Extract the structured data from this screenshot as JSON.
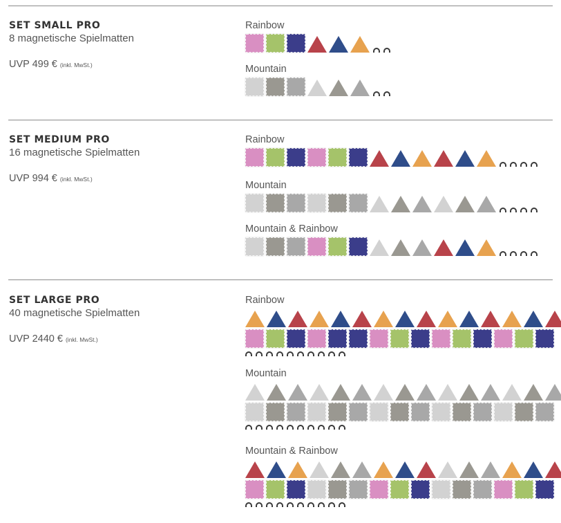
{
  "colors": {
    "pink": "#d98fc2",
    "green": "#a5c36a",
    "navy": "#3b3d8a",
    "red": "#b8434a",
    "blue": "#2f4d8a",
    "orange": "#e7a24f",
    "lightgrey": "#d2d2d2",
    "darkgrey": "#9a9891",
    "midgrey": "#a8a8a8",
    "arch": "#3a3a3a"
  },
  "sets": [
    {
      "title": "SET SMALL PRO",
      "count": "8 magnetische Spielmatten",
      "price": "UVP 499 €",
      "price_note": "(inkl. MwSt.)",
      "variants": [
        {
          "name": "Rainbow",
          "layout": "row",
          "tiles": [
            "pink",
            "green",
            "navy"
          ],
          "triangles": [
            "red",
            "blue",
            "orange"
          ],
          "arches": 2
        },
        {
          "name": "Mountain",
          "layout": "row",
          "tiles": [
            "lightgrey",
            "darkgrey",
            "midgrey"
          ],
          "triangles": [
            "lightgrey",
            "darkgrey",
            "midgrey"
          ],
          "arches": 2
        }
      ]
    },
    {
      "title": "SET MEDIUM PRO",
      "count": "16 magnetische Spielmatten",
      "price": "UVP 994 €",
      "price_note": "(inkl. MwSt.)",
      "variants": [
        {
          "name": "Rainbow",
          "layout": "row",
          "tiles": [
            "pink",
            "green",
            "navy",
            "pink",
            "green",
            "navy"
          ],
          "triangles": [
            "red",
            "blue",
            "orange",
            "red",
            "blue",
            "orange"
          ],
          "arches": 4
        },
        {
          "name": "Mountain",
          "layout": "row",
          "tiles": [
            "lightgrey",
            "darkgrey",
            "midgrey",
            "lightgrey",
            "darkgrey",
            "midgrey"
          ],
          "triangles": [
            "lightgrey",
            "darkgrey",
            "midgrey",
            "lightgrey",
            "darkgrey",
            "midgrey"
          ],
          "arches": 4
        },
        {
          "name": "Mountain & Rainbow",
          "layout": "row",
          "tiles": [
            "lightgrey",
            "darkgrey",
            "midgrey",
            "pink",
            "green",
            "navy"
          ],
          "triangles": [
            "lightgrey",
            "darkgrey",
            "midgrey",
            "red",
            "blue",
            "orange"
          ],
          "arches": 4
        }
      ]
    },
    {
      "title": "SET LARGE PRO",
      "count": "40 magnetische Spielmatten",
      "price": "UVP 2440 €",
      "price_note": "(inkl. MwSt.)",
      "variants": [
        {
          "name": "Rainbow",
          "layout": "grid",
          "triangles": [
            "orange",
            "blue",
            "red",
            "orange",
            "blue",
            "red",
            "orange",
            "blue",
            "red",
            "orange",
            "blue",
            "red",
            "orange",
            "blue",
            "red"
          ],
          "tiles": [
            "pink",
            "green",
            "navy",
            "pink",
            "navy",
            "navy",
            "pink",
            "green",
            "navy",
            "pink",
            "green",
            "navy",
            "pink",
            "green",
            "navy"
          ],
          "arches": 10
        },
        {
          "name": "Mountain",
          "layout": "grid",
          "triangles": [
            "lightgrey",
            "darkgrey",
            "midgrey",
            "lightgrey",
            "darkgrey",
            "midgrey",
            "lightgrey",
            "darkgrey",
            "midgrey",
            "lightgrey",
            "darkgrey",
            "midgrey",
            "lightgrey",
            "darkgrey",
            "midgrey"
          ],
          "tiles": [
            "lightgrey",
            "darkgrey",
            "midgrey",
            "lightgrey",
            "darkgrey",
            "midgrey",
            "lightgrey",
            "darkgrey",
            "midgrey",
            "lightgrey",
            "darkgrey",
            "midgrey",
            "lightgrey",
            "darkgrey",
            "midgrey"
          ],
          "arches": 10
        },
        {
          "name": "Mountain & Rainbow",
          "layout": "grid",
          "triangles": [
            "red",
            "blue",
            "orange",
            "lightgrey",
            "darkgrey",
            "midgrey",
            "orange",
            "blue",
            "red",
            "lightgrey",
            "darkgrey",
            "midgrey",
            "orange",
            "blue",
            "red"
          ],
          "tiles": [
            "pink",
            "green",
            "navy",
            "lightgrey",
            "darkgrey",
            "midgrey",
            "pink",
            "green",
            "navy",
            "lightgrey",
            "darkgrey",
            "midgrey",
            "pink",
            "green",
            "navy"
          ],
          "arches": 10
        }
      ]
    }
  ]
}
